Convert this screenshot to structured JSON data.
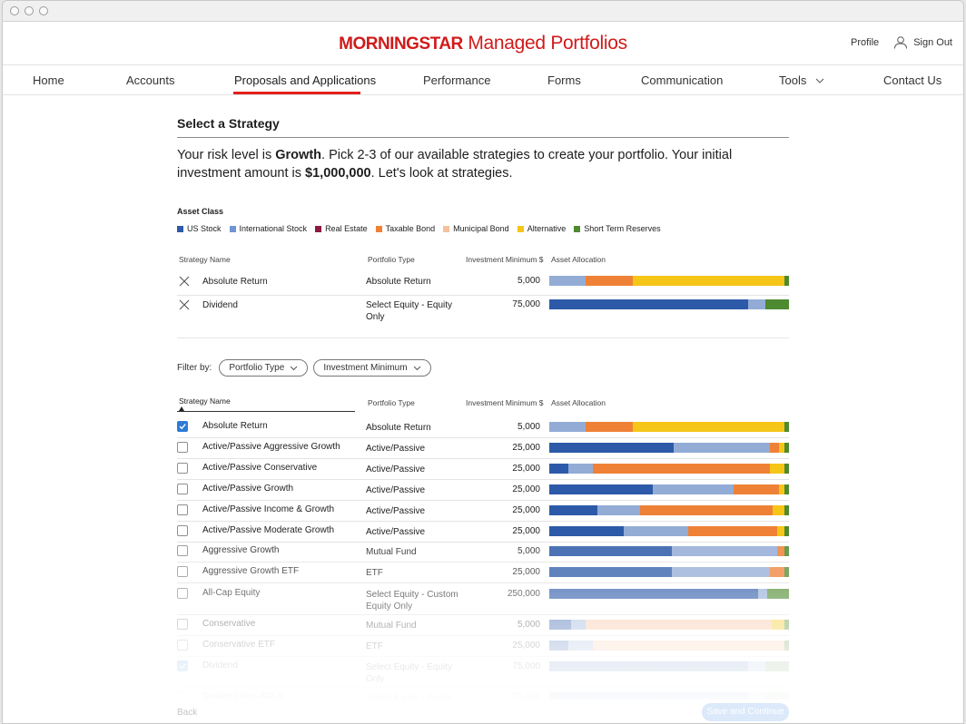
{
  "header": {
    "brand_logo": "MORNINGSTAR",
    "brand_product": "Managed Portfolios",
    "profile_label": "Profile",
    "signout_label": "Sign Out",
    "accent_color": "#d11a1a"
  },
  "nav": {
    "items": [
      {
        "label": "Home"
      },
      {
        "label": "Accounts"
      },
      {
        "label": "Proposals and Applications",
        "active": true
      },
      {
        "label": "Performance"
      },
      {
        "label": "Forms"
      },
      {
        "label": "Communication"
      },
      {
        "label": "Tools"
      },
      {
        "label": "Contact Us"
      }
    ]
  },
  "page": {
    "title": "Select a Strategy",
    "intro_1": "Your risk level is ",
    "risk_level": "Growth",
    "intro_2": ". Pick 2-3 of our available strategies to create your portfolio. Your initial investment amount is ",
    "amount": "$1,000,000",
    "intro_3": ". Let's look at strategies."
  },
  "legend": {
    "title": "Asset Class",
    "items": [
      {
        "label": "US Stock",
        "color": "#2c5aa8"
      },
      {
        "label": "International Stock",
        "color": "#6f95d3"
      },
      {
        "label": "Real Estate",
        "color": "#8b1a3f"
      },
      {
        "label": "Taxable Bond",
        "color": "#ef8136"
      },
      {
        "label": "Municipal Bond",
        "color": "#f6c19b"
      },
      {
        "label": "Alternative",
        "color": "#f5c518"
      },
      {
        "label": "Short Term Reserves",
        "color": "#4e8a30"
      }
    ]
  },
  "columns": {
    "strategy": "Strategy Name",
    "type": "Portfolio Type",
    "minimum": "Investment Minimum $",
    "allocation": "Asset Allocation"
  },
  "selected": [
    {
      "name": "Absolute Return",
      "type": "Absolute Return",
      "min": "5,000",
      "alloc": [
        {
          "c": "#93acd6",
          "v": 15
        },
        {
          "c": "#ef8136",
          "v": 20
        },
        {
          "c": "#f5c518",
          "v": 63
        },
        {
          "c": "#4e8a30",
          "v": 2
        }
      ]
    },
    {
      "name": "Dividend",
      "type": "Select Equity - Equity Only",
      "min": "75,000",
      "alloc": [
        {
          "c": "#2c5aa8",
          "v": 83
        },
        {
          "c": "#93acd6",
          "v": 7
        },
        {
          "c": "#4e8a30",
          "v": 10
        }
      ]
    }
  ],
  "filter": {
    "label": "Filter by:",
    "options": [
      "Portfolio Type",
      "Investment Minimum"
    ]
  },
  "strategies": [
    {
      "name": "Absolute Return",
      "type": "Absolute Return",
      "min": "5,000",
      "checked": true,
      "alloc": [
        {
          "c": "#93acd6",
          "v": 15
        },
        {
          "c": "#ef8136",
          "v": 20
        },
        {
          "c": "#f5c518",
          "v": 63
        },
        {
          "c": "#4e8a30",
          "v": 2
        }
      ]
    },
    {
      "name": "Active/Passive Aggressive Growth",
      "type": "Active/Passive",
      "min": "25,000",
      "checked": false,
      "alloc": [
        {
          "c": "#2c5aa8",
          "v": 52
        },
        {
          "c": "#93acd6",
          "v": 40
        },
        {
          "c": "#ef8136",
          "v": 4
        },
        {
          "c": "#f5c518",
          "v": 2
        },
        {
          "c": "#4e8a30",
          "v": 2
        }
      ]
    },
    {
      "name": "Active/Passive Conservative",
      "type": "Active/Passive",
      "min": "25,000",
      "checked": false,
      "alloc": [
        {
          "c": "#2c5aa8",
          "v": 8
        },
        {
          "c": "#93acd6",
          "v": 10
        },
        {
          "c": "#ef8136",
          "v": 74
        },
        {
          "c": "#f5c518",
          "v": 6
        },
        {
          "c": "#4e8a30",
          "v": 2
        }
      ]
    },
    {
      "name": "Active/Passive Growth",
      "type": "Active/Passive",
      "min": "25,000",
      "checked": false,
      "alloc": [
        {
          "c": "#2c5aa8",
          "v": 43
        },
        {
          "c": "#93acd6",
          "v": 34
        },
        {
          "c": "#ef8136",
          "v": 19
        },
        {
          "c": "#f5c518",
          "v": 2
        },
        {
          "c": "#4e8a30",
          "v": 2
        }
      ]
    },
    {
      "name": "Active/Passive Income & Growth",
      "type": "Active/Passive",
      "min": "25,000",
      "checked": false,
      "alloc": [
        {
          "c": "#2c5aa8",
          "v": 20
        },
        {
          "c": "#93acd6",
          "v": 18
        },
        {
          "c": "#ef8136",
          "v": 55
        },
        {
          "c": "#f5c518",
          "v": 5
        },
        {
          "c": "#4e8a30",
          "v": 2
        }
      ]
    },
    {
      "name": "Active/Passive Moderate Growth",
      "type": "Active/Passive",
      "min": "25,000",
      "checked": false,
      "alloc": [
        {
          "c": "#2c5aa8",
          "v": 31
        },
        {
          "c": "#93acd6",
          "v": 27
        },
        {
          "c": "#ef8136",
          "v": 37
        },
        {
          "c": "#f5c518",
          "v": 3
        },
        {
          "c": "#4e8a30",
          "v": 2
        }
      ]
    },
    {
      "name": "Aggressive Growth",
      "type": "Mutual Fund",
      "min": "5,000",
      "checked": false,
      "alloc": [
        {
          "c": "#2c5aa8",
          "v": 51
        },
        {
          "c": "#93acd6",
          "v": 44
        },
        {
          "c": "#ef8136",
          "v": 3
        },
        {
          "c": "#4e8a30",
          "v": 2
        }
      ]
    },
    {
      "name": "Aggressive Growth ETF",
      "type": "ETF",
      "min": "25,000",
      "checked": false,
      "alloc": [
        {
          "c": "#2c5aa8",
          "v": 51
        },
        {
          "c": "#93acd6",
          "v": 41
        },
        {
          "c": "#ef8136",
          "v": 6
        },
        {
          "c": "#4e8a30",
          "v": 2
        }
      ]
    },
    {
      "name": "All-Cap Equity",
      "type": "Select Equity - Custom Equity Only",
      "min": "250,000",
      "checked": false,
      "alloc": [
        {
          "c": "#2c5aa8",
          "v": 87
        },
        {
          "c": "#93acd6",
          "v": 4
        },
        {
          "c": "#4e8a30",
          "v": 9
        }
      ]
    },
    {
      "name": "Conservative",
      "type": "Mutual Fund",
      "min": "5,000",
      "checked": false,
      "alloc": [
        {
          "c": "#2c5aa8",
          "v": 9
        },
        {
          "c": "#93acd6",
          "v": 6
        },
        {
          "c": "#f6c19b",
          "v": 78
        },
        {
          "c": "#f5c518",
          "v": 5
        },
        {
          "c": "#4e8a30",
          "v": 2
        }
      ]
    },
    {
      "name": "Conservative ETF",
      "type": "ETF",
      "min": "25,000",
      "checked": false,
      "alloc": [
        {
          "c": "#2c5aa8",
          "v": 8
        },
        {
          "c": "#93acd6",
          "v": 10
        },
        {
          "c": "#f6c19b",
          "v": 80
        },
        {
          "c": "#4e8a30",
          "v": 2
        }
      ]
    },
    {
      "name": "Dividend",
      "type": "Select Equity - Equity Only",
      "min": "75,000",
      "checked": true,
      "alloc": [
        {
          "c": "#2c5aa8",
          "v": 83
        },
        {
          "c": "#93acd6",
          "v": 7
        },
        {
          "c": "#4e8a30",
          "v": 10
        }
      ]
    },
    {
      "name": "Dividend Non-ADLS",
      "type": "Select Equity - Equity",
      "min": "75,000",
      "checked": false,
      "alloc": [
        {
          "c": "#2c5aa8",
          "v": 83
        },
        {
          "c": "#93acd6",
          "v": 7
        },
        {
          "c": "#4e8a30",
          "v": 10
        }
      ]
    }
  ],
  "footer": {
    "back_label": "Back",
    "save_label": "Save and Continue"
  }
}
